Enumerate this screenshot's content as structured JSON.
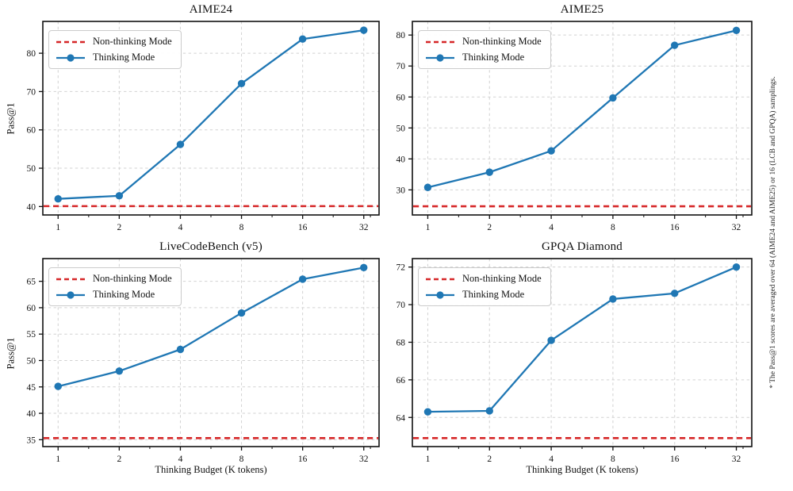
{
  "figure": {
    "xlabel": "Thinking Budget (K tokens)",
    "ylabel": "Pass@1",
    "footnote": "* The Pass@1 scores are averaged over 64 (AIME24 and AIME25) or 16 (LCB and GPQA) samplings.",
    "legend": {
      "non_thinking": "Non-thinking Mode",
      "thinking": "Thinking Mode",
      "position": "upper left"
    },
    "colors": {
      "thinking": "#1f77b4",
      "non_thinking": "#d62728",
      "grid": "#d2d2d2",
      "axis": "#111111",
      "background": "#ffffff"
    }
  },
  "chart_data": [
    {
      "type": "line",
      "title": "AIME24",
      "x_scale": "log2",
      "x": [
        1,
        2,
        4,
        8,
        16,
        32
      ],
      "xtick_labels": [
        "1",
        "2",
        "4",
        "8",
        "16",
        "32"
      ],
      "series": [
        {
          "name": "Non-thinking Mode",
          "kind": "hline",
          "value": 40.1
        },
        {
          "name": "Thinking Mode",
          "kind": "line-markers",
          "values": [
            42.0,
            42.8,
            56.2,
            72.1,
            83.7,
            86.0
          ]
        }
      ],
      "yticks": [
        40,
        50,
        60,
        70,
        80
      ],
      "ylim": [
        37.8,
        88.3
      ],
      "xlim": [
        0.84,
        38.1
      ],
      "grid": true,
      "ylabel_shown": true,
      "xlabel_shown": false
    },
    {
      "type": "line",
      "title": "AIME25",
      "x_scale": "log2",
      "x": [
        1,
        2,
        4,
        8,
        16,
        32
      ],
      "xtick_labels": [
        "1",
        "2",
        "4",
        "8",
        "16",
        "32"
      ],
      "series": [
        {
          "name": "Non-thinking Mode",
          "kind": "hline",
          "value": 24.7
        },
        {
          "name": "Thinking Mode",
          "kind": "line-markers",
          "values": [
            30.8,
            35.7,
            42.6,
            59.7,
            76.7,
            81.5
          ]
        }
      ],
      "yticks": [
        30,
        40,
        50,
        60,
        70,
        80
      ],
      "ylim": [
        21.9,
        84.4
      ],
      "xlim": [
        0.84,
        38.1
      ],
      "grid": true,
      "ylabel_shown": false,
      "xlabel_shown": false
    },
    {
      "type": "line",
      "title": "LiveCodeBench (v5)",
      "x_scale": "log2",
      "x": [
        1,
        2,
        4,
        8,
        16,
        32
      ],
      "xtick_labels": [
        "1",
        "2",
        "4",
        "8",
        "16",
        "32"
      ],
      "series": [
        {
          "name": "Non-thinking Mode",
          "kind": "hline",
          "value": 35.3
        },
        {
          "name": "Thinking Mode",
          "kind": "line-markers",
          "values": [
            45.1,
            48.0,
            52.1,
            59.0,
            65.4,
            67.6
          ]
        }
      ],
      "yticks": [
        35,
        40,
        45,
        50,
        55,
        60,
        65
      ],
      "ylim": [
        33.7,
        69.3
      ],
      "xlim": [
        0.84,
        38.1
      ],
      "grid": true,
      "ylabel_shown": true,
      "xlabel_shown": true
    },
    {
      "type": "line",
      "title": "GPQA Diamond",
      "x_scale": "log2",
      "x": [
        1,
        2,
        4,
        8,
        16,
        32
      ],
      "xtick_labels": [
        "1",
        "2",
        "4",
        "8",
        "16",
        "32"
      ],
      "series": [
        {
          "name": "Non-thinking Mode",
          "kind": "hline",
          "value": 62.9
        },
        {
          "name": "Thinking Mode",
          "kind": "line-markers",
          "values": [
            64.3,
            64.35,
            68.1,
            70.3,
            70.6,
            72.0
          ]
        }
      ],
      "yticks": [
        64,
        66,
        68,
        70,
        72
      ],
      "ylim": [
        62.45,
        72.45
      ],
      "xlim": [
        0.84,
        38.1
      ],
      "grid": true,
      "ylabel_shown": false,
      "xlabel_shown": true
    }
  ]
}
